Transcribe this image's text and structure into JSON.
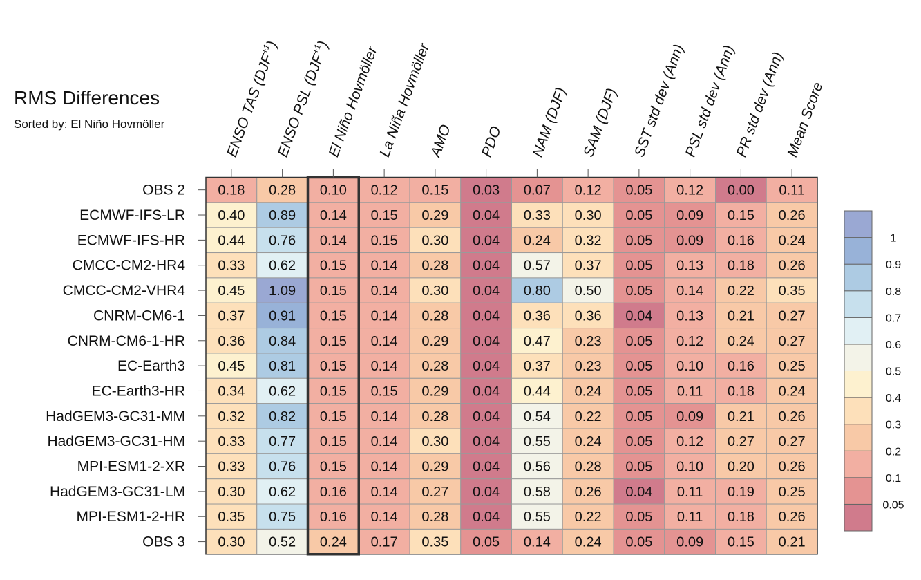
{
  "chart_data": {
    "type": "heatmap",
    "title": "RMS Differences",
    "subtitle": "Sorted by: El Niño Hovmöller",
    "columns": [
      "ENSO TAS (DJF+1)",
      "ENSO PSL (DJF+1)",
      "El Niño Hovmöller",
      "La Niña Hovmöller",
      "AMO",
      "PDO",
      "NAM (DJF)",
      "SAM (DJF)",
      "SST std dev (Ann)",
      "PSL std dev (Ann)",
      "PR std dev (Ann)",
      "Mean Score"
    ],
    "columns_display": [
      {
        "main": "ENSO TAS (DJF",
        "sup": "+1",
        "tail": ")"
      },
      {
        "main": "ENSO PSL (DJF",
        "sup": "+1",
        "tail": ")"
      },
      {
        "main": "El Niño Hovmöller",
        "sup": "",
        "tail": ""
      },
      {
        "main": "La Niña Hovmöller",
        "sup": "",
        "tail": ""
      },
      {
        "main": "AMO",
        "sup": "",
        "tail": ""
      },
      {
        "main": "PDO",
        "sup": "",
        "tail": ""
      },
      {
        "main": "NAM (DJF)",
        "sup": "",
        "tail": ""
      },
      {
        "main": "SAM (DJF)",
        "sup": "",
        "tail": ""
      },
      {
        "main": "SST std dev (Ann)",
        "sup": "",
        "tail": ""
      },
      {
        "main": "PSL std dev (Ann)",
        "sup": "",
        "tail": ""
      },
      {
        "main": "PR std dev (Ann)",
        "sup": "",
        "tail": ""
      },
      {
        "main": "Mean Score",
        "sup": "",
        "tail": ""
      }
    ],
    "rows": [
      "OBS 2",
      "ECMWF-IFS-LR",
      "ECMWF-IFS-HR",
      "CMCC-CM2-HR4",
      "CMCC-CM2-VHR4",
      "CNRM-CM6-1",
      "CNRM-CM6-1-HR",
      "EC-Earth3",
      "EC-Earth3-HR",
      "HadGEM3-GC31-MM",
      "HadGEM3-GC31-HM",
      "MPI-ESM1-2-XR",
      "HadGEM3-GC31-LM",
      "MPI-ESM1-2-HR",
      "OBS 3"
    ],
    "values": [
      [
        0.18,
        0.28,
        0.1,
        0.12,
        0.15,
        0.03,
        0.07,
        0.12,
        0.05,
        0.12,
        0.0,
        0.11
      ],
      [
        0.4,
        0.89,
        0.14,
        0.15,
        0.29,
        0.04,
        0.33,
        0.3,
        0.05,
        0.09,
        0.15,
        0.26
      ],
      [
        0.44,
        0.76,
        0.14,
        0.15,
        0.3,
        0.04,
        0.24,
        0.32,
        0.05,
        0.09,
        0.16,
        0.24
      ],
      [
        0.33,
        0.62,
        0.15,
        0.14,
        0.28,
        0.04,
        0.57,
        0.37,
        0.05,
        0.13,
        0.18,
        0.26
      ],
      [
        0.45,
        1.09,
        0.15,
        0.14,
        0.3,
        0.04,
        0.8,
        0.5,
        0.05,
        0.14,
        0.22,
        0.35
      ],
      [
        0.37,
        0.91,
        0.15,
        0.14,
        0.28,
        0.04,
        0.36,
        0.36,
        0.04,
        0.13,
        0.21,
        0.27
      ],
      [
        0.36,
        0.84,
        0.15,
        0.14,
        0.29,
        0.04,
        0.47,
        0.23,
        0.05,
        0.12,
        0.24,
        0.27
      ],
      [
        0.45,
        0.81,
        0.15,
        0.14,
        0.28,
        0.04,
        0.37,
        0.23,
        0.05,
        0.1,
        0.16,
        0.25
      ],
      [
        0.34,
        0.62,
        0.15,
        0.15,
        0.29,
        0.04,
        0.44,
        0.24,
        0.05,
        0.11,
        0.18,
        0.24
      ],
      [
        0.32,
        0.82,
        0.15,
        0.14,
        0.28,
        0.04,
        0.54,
        0.22,
        0.05,
        0.09,
        0.21,
        0.26
      ],
      [
        0.33,
        0.77,
        0.15,
        0.14,
        0.3,
        0.04,
        0.55,
        0.24,
        0.05,
        0.12,
        0.27,
        0.27
      ],
      [
        0.33,
        0.76,
        0.15,
        0.14,
        0.29,
        0.04,
        0.56,
        0.28,
        0.05,
        0.1,
        0.2,
        0.26
      ],
      [
        0.3,
        0.62,
        0.16,
        0.14,
        0.27,
        0.04,
        0.58,
        0.26,
        0.04,
        0.11,
        0.19,
        0.25
      ],
      [
        0.35,
        0.75,
        0.16,
        0.14,
        0.28,
        0.04,
        0.55,
        0.22,
        0.05,
        0.11,
        0.18,
        0.26
      ],
      [
        0.3,
        0.52,
        0.24,
        0.17,
        0.35,
        0.05,
        0.14,
        0.24,
        0.05,
        0.09,
        0.15,
        0.21
      ]
    ],
    "highlighted_column": "El Niño Hovmöller",
    "colorbar": {
      "ticks": [
        "1",
        "0.9",
        "0.8",
        "0.7",
        "0.6",
        "0.5",
        "0.4",
        "0.3",
        "0.2",
        "0.1",
        "0.05"
      ],
      "levels": [
        0.05,
        0.1,
        0.2,
        0.3,
        0.4,
        0.5,
        0.6,
        0.7,
        0.8,
        0.9,
        1.0
      ],
      "colors": [
        "#d07b8c",
        "#e49392",
        "#f2afa2",
        "#f8c9a7",
        "#fde0ba",
        "#fdf1cf",
        "#f3f3e8",
        "#e1f0f4",
        "#c7e0ed",
        "#adcbe3",
        "#98b2d8",
        "#9aa8d3"
      ]
    }
  }
}
